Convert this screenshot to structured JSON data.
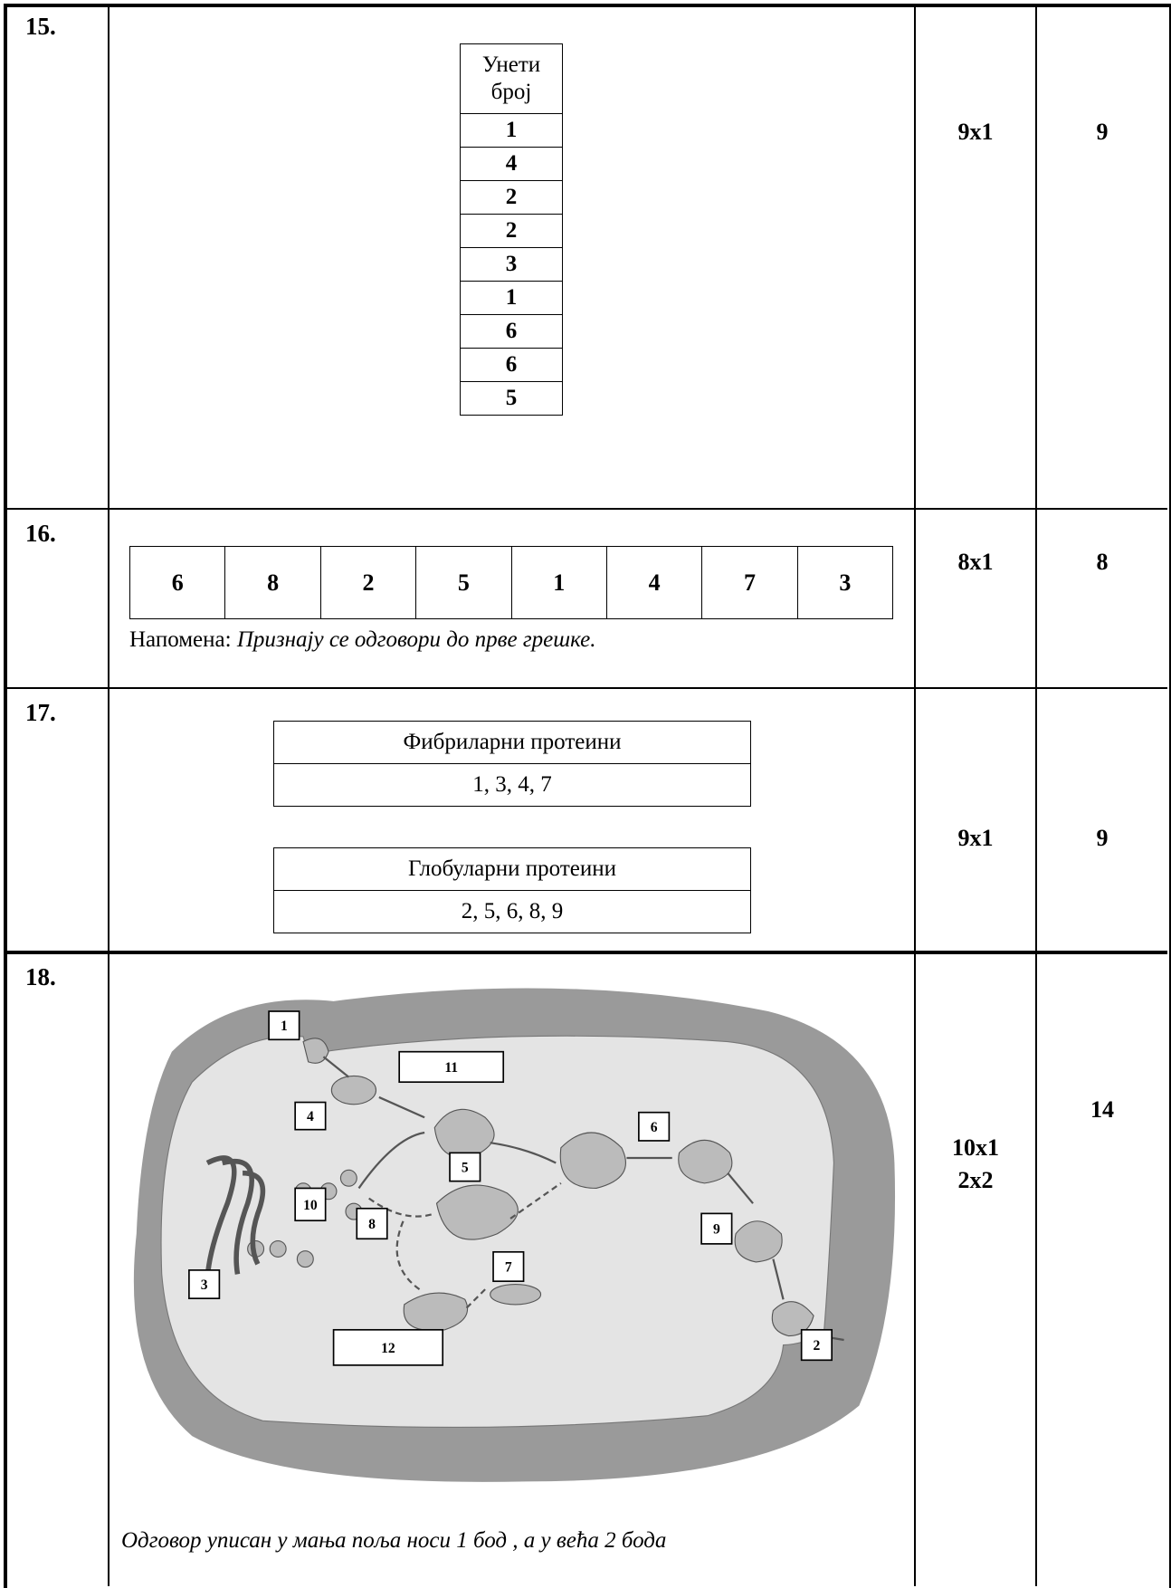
{
  "rows": [
    {
      "number": "15.",
      "table": {
        "header": "Унети број",
        "values": [
          "1",
          "4",
          "2",
          "2",
          "3",
          "1",
          "6",
          "6",
          "5"
        ]
      },
      "points": "9x1",
      "total": "9"
    },
    {
      "number": "16.",
      "cells": [
        "6",
        "8",
        "2",
        "5",
        "1",
        "4",
        "7",
        "3"
      ],
      "note": {
        "label": "Напомена:",
        "text": "Признају се одговори до прве грешке."
      },
      "points": "8x1",
      "total": "8"
    },
    {
      "number": "17.",
      "tables": [
        {
          "header": "Фибриларни протеини",
          "values": "1, 3, 4, 7"
        },
        {
          "header": "Глобуларни протеини",
          "values": "2, 5, 6, 8, 9"
        }
      ],
      "points": "9x1",
      "total": "9"
    },
    {
      "number": "18.",
      "diagram": {
        "labels": [
          "1",
          "2",
          "3",
          "4",
          "5",
          "6",
          "7",
          "8",
          "9",
          "10",
          "11",
          "12"
        ]
      },
      "note": "Одговор уписан у мања поља носи 1 бод , а у већа 2 бода",
      "points": [
        "10x1",
        "2x2"
      ],
      "total": "14"
    }
  ]
}
